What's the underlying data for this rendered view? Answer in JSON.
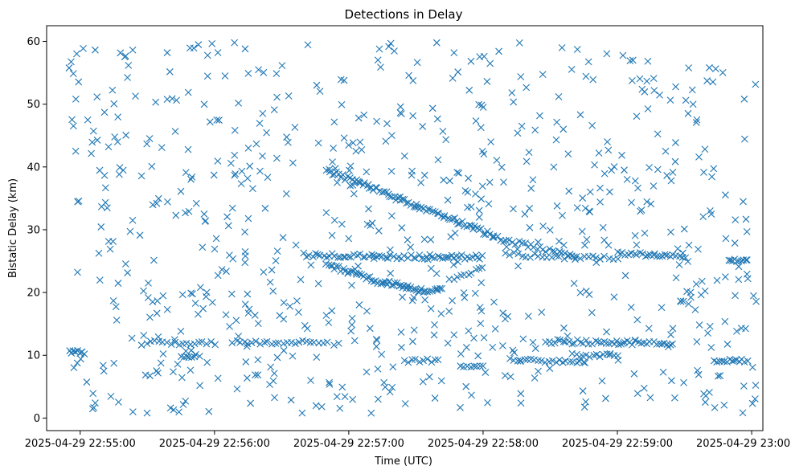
{
  "chart_data": {
    "type": "scatter",
    "title": "Detections in Delay",
    "xlabel": "Time (UTC)",
    "ylabel": "Bistatic Delay (km)",
    "marker": "x",
    "color": "#1f77b4",
    "xlim": [
      -15,
      305
    ],
    "ylim": [
      -2,
      62.5
    ],
    "x_unit": "seconds since 2025-04-29 22:55:00",
    "xticks": [
      {
        "value": 0,
        "label": "2025-04-29 22:55:00"
      },
      {
        "value": 60,
        "label": "2025-04-29 22:56:00"
      },
      {
        "value": 120,
        "label": "2025-04-29 22:57:00"
      },
      {
        "value": 180,
        "label": "2025-04-29 22:58:00"
      },
      {
        "value": 240,
        "label": "2025-04-29 22:59:00"
      },
      {
        "value": 300,
        "label": "2025-04-29 23:00:00"
      }
    ],
    "yticks": [
      {
        "value": 0,
        "label": "0"
      },
      {
        "value": 10,
        "label": "10"
      },
      {
        "value": 20,
        "label": "20"
      },
      {
        "value": 30,
        "label": "30"
      },
      {
        "value": 40,
        "label": "40"
      },
      {
        "value": 50,
        "label": "50"
      },
      {
        "value": 60,
        "label": "60"
      }
    ],
    "tracks": [
      {
        "x0": 110,
        "x1": 185,
        "y0": 39.5,
        "y1": 29.0,
        "n": 80,
        "jitter": 0.4
      },
      {
        "x0": 185,
        "x1": 222,
        "y0": 28.8,
        "y1": 25.6,
        "n": 28,
        "jitter": 0.35
      },
      {
        "x0": 100,
        "x1": 155,
        "y0": 26.0,
        "y1": 25.6,
        "n": 45,
        "jitter": 0.35
      },
      {
        "x0": 155,
        "x1": 180,
        "y0": 25.8,
        "y1": 25.6,
        "n": 22,
        "jitter": 0.35
      },
      {
        "x0": 190,
        "x1": 240,
        "y0": 26.0,
        "y1": 25.5,
        "n": 28,
        "jitter": 0.4
      },
      {
        "x0": 240,
        "x1": 270,
        "y0": 26.2,
        "y1": 25.8,
        "n": 25,
        "jitter": 0.3
      },
      {
        "x0": 290,
        "x1": 298,
        "y0": 25.2,
        "y1": 25.0,
        "n": 10,
        "jitter": 0.2
      },
      {
        "x0": 110,
        "x1": 135,
        "y0": 24.5,
        "y1": 21.5,
        "n": 28,
        "jitter": 0.35
      },
      {
        "x0": 135,
        "x1": 152,
        "y0": 21.8,
        "y1": 20.3,
        "n": 22,
        "jitter": 0.35
      },
      {
        "x0": 152,
        "x1": 162,
        "y0": 20.2,
        "y1": 20.6,
        "n": 10,
        "jitter": 0.3
      },
      {
        "x0": 165,
        "x1": 180,
        "y0": 21.8,
        "y1": 24.0,
        "n": 10,
        "jitter": 0.35
      },
      {
        "x0": 30,
        "x1": 60,
        "y0": 12.2,
        "y1": 11.8,
        "n": 18,
        "jitter": 0.35
      },
      {
        "x0": 68,
        "x1": 110,
        "y0": 12.0,
        "y1": 12.1,
        "n": 25,
        "jitter": 0.3
      },
      {
        "x0": 208,
        "x1": 265,
        "y0": 12.2,
        "y1": 11.9,
        "n": 45,
        "jitter": 0.35
      },
      {
        "x0": 220,
        "x1": 240,
        "y0": 10.0,
        "y1": 10.0,
        "n": 14,
        "jitter": 0.3
      },
      {
        "x0": 192,
        "x1": 225,
        "y0": 9.2,
        "y1": 9.0,
        "n": 22,
        "jitter": 0.3
      },
      {
        "x0": 283,
        "x1": 298,
        "y0": 9.0,
        "y1": 9.2,
        "n": 14,
        "jitter": 0.3
      },
      {
        "x0": 145,
        "x1": 160,
        "y0": 9.0,
        "y1": 9.2,
        "n": 10,
        "jitter": 0.3
      },
      {
        "x0": 170,
        "x1": 180,
        "y0": 8.2,
        "y1": 8.4,
        "n": 8,
        "jitter": 0.3
      },
      {
        "x0": 45,
        "x1": 53,
        "y0": 10.0,
        "y1": 9.8,
        "n": 8,
        "jitter": 0.3
      },
      {
        "x0": -5,
        "x1": 2,
        "y0": 10.5,
        "y1": 10.4,
        "n": 10,
        "jitter": 0.3
      }
    ],
    "noise": {
      "count": 720,
      "x_range": [
        -5,
        302
      ],
      "y_range": [
        0.5,
        60
      ],
      "seed": 20250429
    }
  }
}
